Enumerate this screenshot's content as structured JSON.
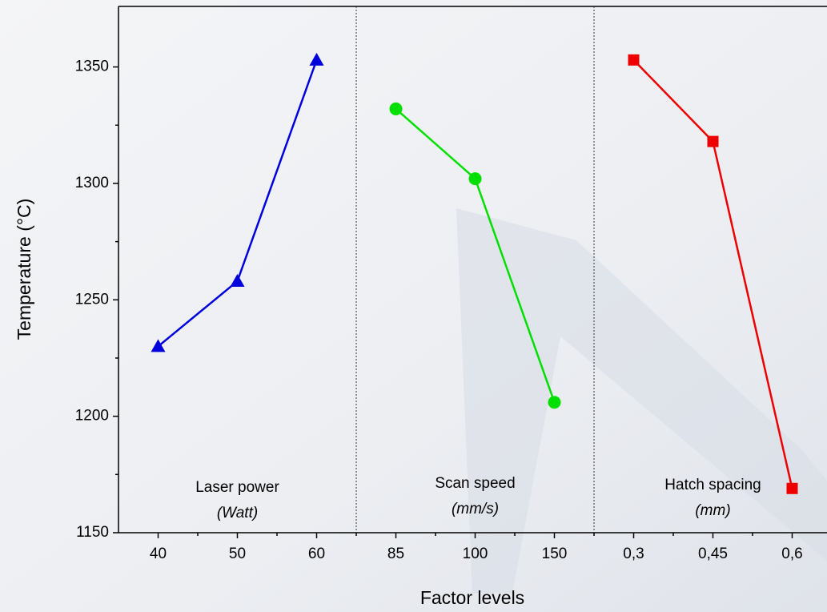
{
  "chart_data": {
    "type": "line",
    "x_label": "Factor levels",
    "y_label": "Temperature (°C)",
    "categories": [
      "40",
      "50",
      "60",
      "85",
      "100",
      "150",
      "0,3",
      "0,45",
      "0,6"
    ],
    "series": [
      {
        "name": "Laser power",
        "unit": "(Watt)",
        "color": "#0000dd",
        "marker": "triangle",
        "values": [
          1230,
          1258,
          1353,
          null,
          null,
          null,
          null,
          null,
          null
        ]
      },
      {
        "name": "Scan speed",
        "unit": "(mm/s)",
        "color": "#00e000",
        "marker": "circle",
        "values": [
          null,
          null,
          null,
          1332,
          1302,
          1206,
          null,
          null,
          null
        ]
      },
      {
        "name": "Hatch spacing",
        "unit": "(mm)",
        "color": "#ee0000",
        "marker": "square",
        "values": [
          null,
          null,
          null,
          null,
          null,
          null,
          1353,
          1318,
          1169
        ]
      }
    ],
    "ylim": [
      1150,
      1376
    ],
    "yticks": [
      1150,
      1200,
      1250,
      1300,
      1350
    ]
  }
}
